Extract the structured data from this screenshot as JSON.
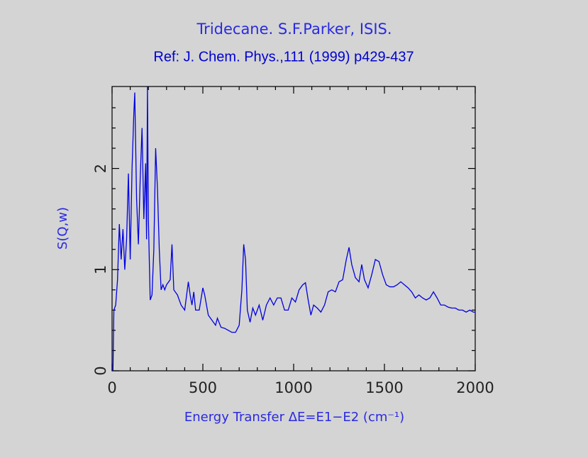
{
  "chart_data": {
    "type": "line",
    "title": "Tridecane. S.F.Parker, ISIS.",
    "subtitle": "Ref: J. Chem. Phys.,111 (1999) p429-437",
    "xlabel": "Energy Transfer ΔE=E1−E2 (cm⁻¹)",
    "ylabel": "S(Q,w)",
    "xlim": [
      0,
      2000
    ],
    "ylim": [
      0,
      2.81
    ],
    "xticks": [
      0,
      500,
      1000,
      1500,
      2000
    ],
    "yticks": [
      0,
      1,
      2
    ],
    "xticks_minor": [
      100,
      200,
      300,
      400,
      600,
      700,
      800,
      900,
      1100,
      1200,
      1300,
      1400,
      1600,
      1700,
      1800,
      1900
    ],
    "yticks_minor": [
      0.2,
      0.4,
      0.6,
      0.8,
      1.2,
      1.4,
      1.6,
      1.8,
      2.2,
      2.4,
      2.6
    ],
    "series": [
      {
        "color": "#0000e0",
        "x": [
          5,
          10,
          20,
          30,
          40,
          50,
          60,
          70,
          80,
          90,
          100,
          110,
          120,
          125,
          135,
          145,
          155,
          165,
          175,
          185,
          190,
          195,
          200,
          210,
          220,
          230,
          240,
          250,
          260,
          270,
          280,
          290,
          300,
          320,
          330,
          340,
          360,
          380,
          400,
          420,
          430,
          440,
          450,
          460,
          480,
          500,
          510,
          530,
          550,
          570,
          580,
          600,
          620,
          640,
          660,
          680,
          700,
          715,
          725,
          735,
          745,
          760,
          775,
          790,
          810,
          830,
          850,
          870,
          890,
          910,
          930,
          950,
          970,
          990,
          1010,
          1030,
          1050,
          1065,
          1080,
          1095,
          1110,
          1130,
          1150,
          1170,
          1190,
          1210,
          1230,
          1250,
          1270,
          1290,
          1305,
          1320,
          1340,
          1360,
          1375,
          1390,
          1410,
          1430,
          1450,
          1470,
          1490,
          1510,
          1530,
          1550,
          1570,
          1590,
          1610,
          1630,
          1650,
          1670,
          1690,
          1710,
          1730,
          1750,
          1770,
          1790,
          1810,
          1830,
          1850,
          1870,
          1890,
          1910,
          1930,
          1950,
          1970,
          1990,
          2000
        ],
        "values": [
          0,
          0.6,
          0.65,
          0.9,
          1.45,
          1.1,
          1.4,
          1.0,
          1.3,
          1.95,
          1.1,
          2.0,
          2.55,
          2.75,
          1.7,
          1.25,
          1.9,
          2.4,
          1.5,
          2.05,
          1.3,
          2.81,
          1.5,
          0.7,
          0.75,
          1.2,
          2.2,
          1.8,
          1.2,
          0.8,
          0.85,
          0.8,
          0.85,
          0.9,
          1.25,
          0.8,
          0.75,
          0.65,
          0.6,
          0.88,
          0.75,
          0.65,
          0.78,
          0.6,
          0.6,
          0.82,
          0.75,
          0.55,
          0.5,
          0.45,
          0.52,
          0.43,
          0.42,
          0.4,
          0.38,
          0.38,
          0.45,
          0.8,
          1.25,
          1.1,
          0.6,
          0.48,
          0.62,
          0.55,
          0.65,
          0.5,
          0.65,
          0.72,
          0.65,
          0.72,
          0.72,
          0.6,
          0.6,
          0.72,
          0.68,
          0.8,
          0.85,
          0.87,
          0.7,
          0.55,
          0.65,
          0.62,
          0.58,
          0.65,
          0.78,
          0.8,
          0.78,
          0.88,
          0.9,
          1.1,
          1.22,
          1.05,
          0.92,
          0.88,
          1.05,
          0.9,
          0.82,
          0.95,
          1.1,
          1.08,
          0.95,
          0.85,
          0.83,
          0.83,
          0.85,
          0.88,
          0.85,
          0.82,
          0.78,
          0.72,
          0.75,
          0.72,
          0.7,
          0.72,
          0.78,
          0.72,
          0.65,
          0.65,
          0.63,
          0.62,
          0.62,
          0.6,
          0.6,
          0.58,
          0.6,
          0.58,
          0.58
        ]
      }
    ]
  }
}
